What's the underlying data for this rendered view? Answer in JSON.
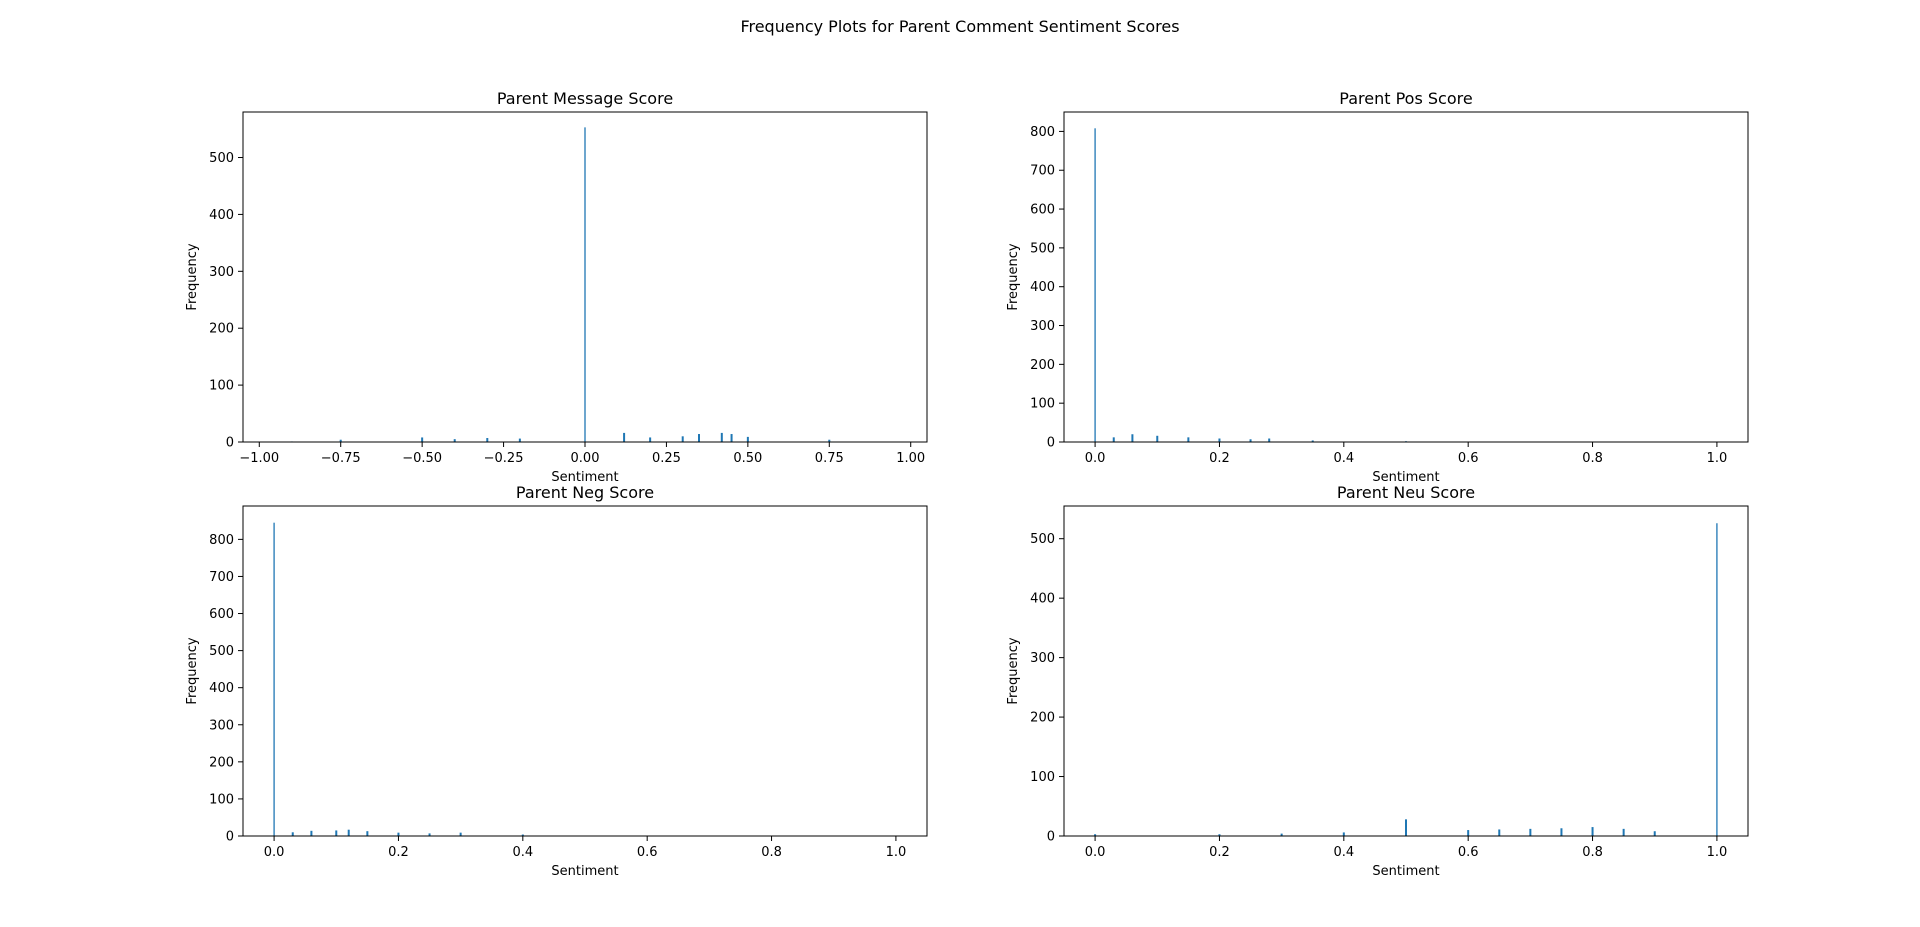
{
  "figure": {
    "suptitle": "Frequency Plots for Parent Comment Sentiment Scores",
    "bar_color": "#1f77b4"
  },
  "chart_data": [
    {
      "type": "bar",
      "title": "Parent Message Score",
      "xlabel": "Sentiment",
      "ylabel": "Frequency",
      "xlim": [
        -1.05,
        1.05
      ],
      "ylim": [
        0,
        580
      ],
      "xticks": [
        -1.0,
        -0.75,
        -0.5,
        -0.25,
        0.0,
        0.25,
        0.5,
        0.75,
        1.0
      ],
      "xtick_labels": [
        "−1.00",
        "−0.75",
        "−0.50",
        "−0.25",
        "0.00",
        "0.25",
        "0.50",
        "0.75",
        "1.00"
      ],
      "yticks": [
        0,
        100,
        200,
        300,
        400,
        500
      ],
      "ytick_labels": [
        "0",
        "100",
        "200",
        "300",
        "400",
        "500"
      ],
      "x": [
        -0.9,
        -0.75,
        -0.5,
        -0.4,
        -0.3,
        -0.2,
        0.0,
        0.12,
        0.2,
        0.3,
        0.35,
        0.42,
        0.45,
        0.5,
        0.75
      ],
      "values": [
        1,
        4,
        8,
        5,
        7,
        6,
        553,
        16,
        8,
        10,
        14,
        16,
        14,
        9,
        4
      ]
    },
    {
      "type": "bar",
      "title": "Parent Pos Score",
      "xlabel": "Sentiment",
      "ylabel": "Frequency",
      "xlim": [
        -0.05,
        1.05
      ],
      "ylim": [
        0,
        850
      ],
      "xticks": [
        0.0,
        0.2,
        0.4,
        0.6,
        0.8,
        1.0
      ],
      "xtick_labels": [
        "0.0",
        "0.2",
        "0.4",
        "0.6",
        "0.8",
        "1.0"
      ],
      "yticks": [
        0,
        100,
        200,
        300,
        400,
        500,
        600,
        700,
        800
      ],
      "ytick_labels": [
        "0",
        "100",
        "200",
        "300",
        "400",
        "500",
        "600",
        "700",
        "800"
      ],
      "x": [
        0.0,
        0.03,
        0.06,
        0.1,
        0.15,
        0.2,
        0.25,
        0.28,
        0.35,
        0.5
      ],
      "values": [
        808,
        12,
        20,
        16,
        12,
        9,
        7,
        9,
        4,
        2
      ]
    },
    {
      "type": "bar",
      "title": "Parent Neg Score",
      "xlabel": "Sentiment",
      "ylabel": "Frequency",
      "xlim": [
        -0.05,
        1.05
      ],
      "ylim": [
        0,
        890
      ],
      "xticks": [
        0.0,
        0.2,
        0.4,
        0.6,
        0.8,
        1.0
      ],
      "xtick_labels": [
        "0.0",
        "0.2",
        "0.4",
        "0.6",
        "0.8",
        "1.0"
      ],
      "yticks": [
        0,
        100,
        200,
        300,
        400,
        500,
        600,
        700,
        800
      ],
      "ytick_labels": [
        "0",
        "100",
        "200",
        "300",
        "400",
        "500",
        "600",
        "700",
        "800"
      ],
      "x": [
        0.0,
        0.03,
        0.06,
        0.1,
        0.12,
        0.15,
        0.2,
        0.25,
        0.3,
        0.4
      ],
      "values": [
        845,
        10,
        14,
        15,
        17,
        13,
        9,
        7,
        9,
        4
      ]
    },
    {
      "type": "bar",
      "title": "Parent Neu Score",
      "xlabel": "Sentiment",
      "ylabel": "Frequency",
      "xlim": [
        -0.05,
        1.05
      ],
      "ylim": [
        0,
        555
      ],
      "xticks": [
        0.0,
        0.2,
        0.4,
        0.6,
        0.8,
        1.0
      ],
      "xtick_labels": [
        "0.0",
        "0.2",
        "0.4",
        "0.6",
        "0.8",
        "1.0"
      ],
      "yticks": [
        0,
        100,
        200,
        300,
        400,
        500
      ],
      "ytick_labels": [
        "0",
        "100",
        "200",
        "300",
        "400",
        "500"
      ],
      "x": [
        0.0,
        0.2,
        0.3,
        0.4,
        0.5,
        0.6,
        0.65,
        0.7,
        0.75,
        0.8,
        0.85,
        0.9,
        1.0
      ],
      "values": [
        3,
        3,
        4,
        6,
        28,
        10,
        11,
        12,
        13,
        15,
        12,
        8,
        526
      ]
    }
  ]
}
